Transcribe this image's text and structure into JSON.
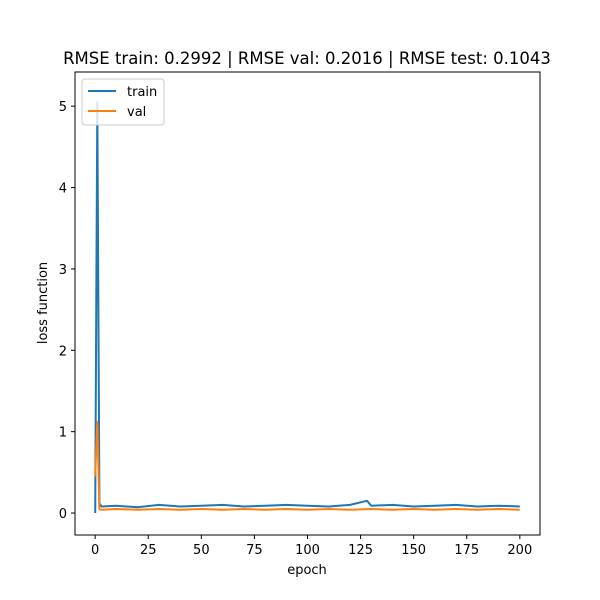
{
  "chart_data": {
    "type": "line",
    "title": "RMSE train: 0.2992 | RMSE val: 0.2016 | RMSE test: 0.1043",
    "xlabel": "epoch",
    "ylabel": "loss function",
    "xlim": [
      -9.5,
      209.5
    ],
    "ylim": [
      -0.27,
      5.42
    ],
    "grid": false,
    "legend_position": "top-left",
    "x_ticks": [
      0,
      25,
      50,
      75,
      100,
      125,
      150,
      175,
      200
    ],
    "x_tick_labels": [
      "0",
      "25",
      "50",
      "75",
      "100",
      "125",
      "150",
      "175",
      "200"
    ],
    "y_ticks": [
      0,
      1,
      2,
      3,
      4,
      5
    ],
    "y_tick_labels": [
      "0",
      "1",
      "2",
      "3",
      "4",
      "5"
    ],
    "series": [
      {
        "name": "train",
        "color": "#1f77b4",
        "x": [
          0,
          1,
          2,
          3,
          10,
          20,
          30,
          40,
          50,
          60,
          70,
          80,
          90,
          100,
          110,
          120,
          128,
          130,
          140,
          150,
          160,
          170,
          180,
          190,
          200
        ],
        "values": [
          0.0,
          5.05,
          0.12,
          0.08,
          0.09,
          0.07,
          0.1,
          0.08,
          0.09,
          0.1,
          0.08,
          0.09,
          0.1,
          0.09,
          0.08,
          0.1,
          0.15,
          0.09,
          0.1,
          0.08,
          0.09,
          0.1,
          0.08,
          0.09,
          0.08
        ]
      },
      {
        "name": "val",
        "color": "#ff7f0e",
        "x": [
          0,
          1,
          2,
          3,
          10,
          20,
          30,
          40,
          50,
          60,
          70,
          80,
          90,
          100,
          110,
          120,
          130,
          140,
          150,
          160,
          170,
          180,
          190,
          200
        ],
        "values": [
          0.45,
          1.12,
          0.05,
          0.04,
          0.05,
          0.04,
          0.05,
          0.04,
          0.05,
          0.04,
          0.05,
          0.04,
          0.05,
          0.04,
          0.05,
          0.04,
          0.05,
          0.04,
          0.05,
          0.04,
          0.05,
          0.04,
          0.05,
          0.04
        ]
      }
    ]
  }
}
